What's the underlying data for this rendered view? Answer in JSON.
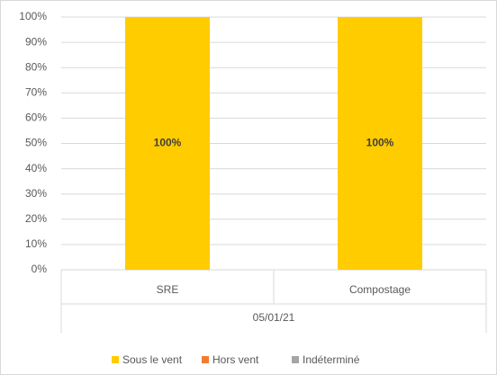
{
  "chart_data": {
    "type": "stacked_bar",
    "categories": [
      "SRE",
      "Compostage"
    ],
    "group_label": "05/01/21",
    "series": [
      {
        "name": "Sous le vent",
        "color": "#ffcc00",
        "values": [
          100,
          100
        ],
        "value_labels": [
          "100%",
          "100%"
        ]
      },
      {
        "name": "Hors vent",
        "color": "#ed7d31",
        "values": [
          0,
          0
        ]
      },
      {
        "name": "Indéterminé",
        "color": "#a5a5a5",
        "values": [
          0,
          0
        ]
      }
    ],
    "ylim": [
      0,
      100
    ],
    "yticks": [
      {
        "value": 0,
        "label": "0%"
      },
      {
        "value": 10,
        "label": "10%"
      },
      {
        "value": 20,
        "label": "20%"
      },
      {
        "value": 30,
        "label": "30%"
      },
      {
        "value": 40,
        "label": "40%"
      },
      {
        "value": 50,
        "label": "50%"
      },
      {
        "value": 60,
        "label": "60%"
      },
      {
        "value": 70,
        "label": "70%"
      },
      {
        "value": 80,
        "label": "80%"
      },
      {
        "value": 90,
        "label": "90%"
      },
      {
        "value": 100,
        "label": "100%"
      }
    ],
    "grid": true,
    "legend": "bottom"
  }
}
